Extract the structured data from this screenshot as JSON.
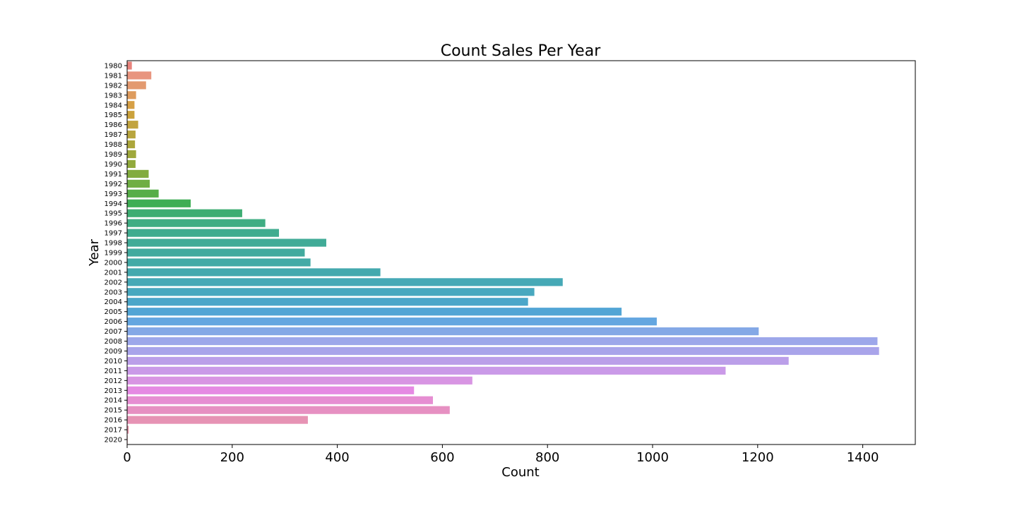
{
  "chart_data": {
    "type": "bar",
    "orientation": "horizontal",
    "title": "Count Sales Per Year",
    "xlabel": "Count",
    "ylabel": "Year",
    "xlim": [
      0,
      1500
    ],
    "xticks": [
      0,
      200,
      400,
      600,
      800,
      1000,
      1200,
      1400
    ],
    "grid": false,
    "legend": "none",
    "categories": [
      "1980",
      "1981",
      "1982",
      "1983",
      "1984",
      "1985",
      "1986",
      "1987",
      "1988",
      "1989",
      "1990",
      "1991",
      "1992",
      "1993",
      "1994",
      "1995",
      "1996",
      "1997",
      "1998",
      "1999",
      "2000",
      "2001",
      "2002",
      "2003",
      "2004",
      "2005",
      "2006",
      "2007",
      "2008",
      "2009",
      "2010",
      "2011",
      "2012",
      "2013",
      "2014",
      "2015",
      "2016",
      "2017",
      "2020"
    ],
    "values": [
      9,
      46,
      36,
      17,
      14,
      14,
      21,
      16,
      15,
      17,
      16,
      41,
      43,
      60,
      121,
      219,
      263,
      289,
      379,
      338,
      349,
      482,
      829,
      775,
      763,
      941,
      1008,
      1202,
      1428,
      1431,
      1259,
      1139,
      657,
      546,
      582,
      614,
      344,
      3,
      1
    ],
    "colors": [
      "#e8837c",
      "#e8957f",
      "#e39a70",
      "#de9c5e",
      "#d6a046",
      "#cba23c",
      "#c2a440",
      "#b8a53e",
      "#aca63c",
      "#9fa83c",
      "#91aa3c",
      "#82ac3e",
      "#6fae43",
      "#57ae48",
      "#3fae55",
      "#3dad72",
      "#3fad83",
      "#40ac8f",
      "#41ab97",
      "#42aa9e",
      "#43aaa6",
      "#44a9ae",
      "#46a9b6",
      "#48a8bf",
      "#4ba6c9",
      "#52a5d5",
      "#64a6e0",
      "#84a8e6",
      "#9da7ea",
      "#a9a4ea",
      "#bb9fe9",
      "#ca9ae8",
      "#d895e3",
      "#e58ae3",
      "#e68ed2",
      "#e690c2",
      "#e693b4",
      "#e696a8",
      "#e69aa0"
    ]
  }
}
